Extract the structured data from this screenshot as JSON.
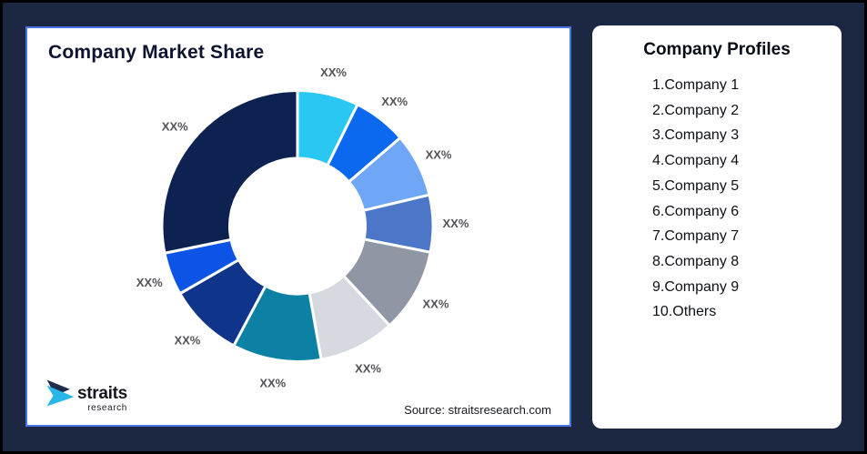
{
  "background": {
    "frame_color": "#000000",
    "page_color": "#1c2741"
  },
  "chart_card": {
    "title": "Company Market Share",
    "source": "Source: straitsresearch.com",
    "border_color": "#4673e6",
    "logo": {
      "brand": "straits",
      "sub": "research",
      "mark_navy": "#1e2c4e",
      "mark_cyan": "#29b7ea"
    }
  },
  "profiles_card": {
    "title": "Company Profiles",
    "items": [
      "1.Company 1",
      "2.Company 2",
      "3.Company 3",
      "4.Company 4",
      "5.Company 5",
      "6.Company 6",
      "7.Company 7",
      "8.Company 8",
      "9.Company 9",
      "10.Others"
    ]
  },
  "chart_data": {
    "type": "pie",
    "subtype": "donut",
    "title": "Company Market Share",
    "categories": [
      "Company 1",
      "Company 2",
      "Company 3",
      "Company 4",
      "Company 5",
      "Company 6",
      "Company 7",
      "Company 8",
      "Company 9",
      "Others"
    ],
    "values": [
      7.3,
      6.4,
      7.6,
      6.8,
      10.0,
      9.1,
      10.6,
      8.9,
      5.1,
      28.2
    ],
    "slice_labels": [
      "XX%",
      "XX%",
      "XX%",
      "XX%",
      "XX%",
      "XX%",
      "XX%",
      "XX%",
      "XX%",
      "XX%"
    ],
    "colors": [
      "#29C7F2",
      "#0B69F0",
      "#70A6F6",
      "#4C77C8",
      "#9097A4",
      "#D6D9DF",
      "#0D81A4",
      "#0F358A",
      "#0D54E6",
      "#0D2251"
    ],
    "donut_hole_ratio": 0.5,
    "start_angle": "top",
    "direction": "clockwise",
    "gap_color": "#ffffff",
    "label_color": "#525356",
    "legend_position": "none"
  }
}
